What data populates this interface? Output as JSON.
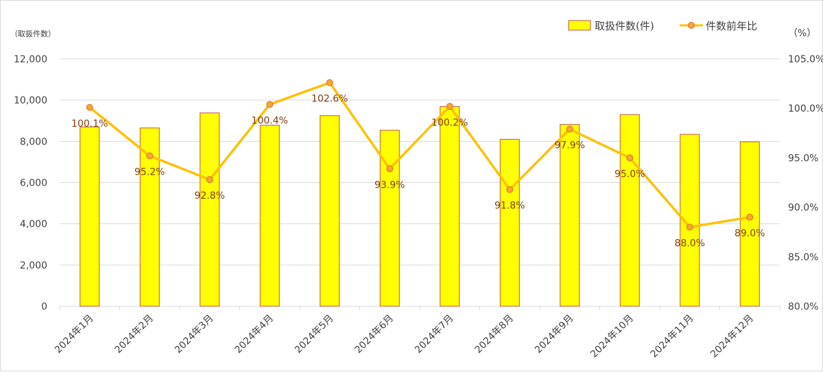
{
  "chart_data": {
    "type": "bar+line",
    "categories": [
      "2024年1月",
      "2024年2月",
      "2024年3月",
      "2024年4月",
      "2024年5月",
      "2024年6月",
      "2024年7月",
      "2024年8月",
      "2024年9月",
      "2024年10月",
      "2024年11月",
      "2024年12月"
    ],
    "series": [
      {
        "name": "取扱件数(件)",
        "type": "bar",
        "axis": "left",
        "values": [
          8700,
          8650,
          9380,
          8780,
          9250,
          8540,
          9690,
          8100,
          8820,
          9300,
          8340,
          7980
        ]
      },
      {
        "name": "件数前年比",
        "type": "line",
        "axis": "right",
        "values": [
          100.1,
          95.2,
          92.8,
          100.4,
          102.6,
          93.9,
          100.2,
          91.8,
          97.9,
          95.0,
          88.0,
          89.0
        ],
        "labels": [
          "100.1%",
          "95.2%",
          "92.8%",
          "100.4%",
          "102.6%",
          "93.9%",
          "100.2%",
          "91.8%",
          "97.9%",
          "95.0%",
          "88.0%",
          "89.0%"
        ]
      }
    ],
    "y_left": {
      "unit_label": "（取扱件数）",
      "ylim": [
        0,
        12000
      ],
      "ticks": [
        0,
        2000,
        4000,
        6000,
        8000,
        10000,
        12000
      ],
      "tick_labels": [
        "0",
        "2,000",
        "4,000",
        "6,000",
        "8,000",
        "10,000",
        "12,000"
      ]
    },
    "y_right": {
      "unit_label": "（%）",
      "ylim": [
        80,
        105
      ],
      "ticks": [
        80,
        85,
        90,
        95,
        100,
        105
      ],
      "tick_labels": [
        "80.0%",
        "85.0%",
        "90.0%",
        "95.0%",
        "100.0%",
        "105.0%"
      ]
    },
    "grid": true,
    "legend_position": "top-right",
    "colors": {
      "bar_fill": "#ffff00",
      "bar_stroke": "#c0504d",
      "line": "#ffc000",
      "marker_fill": "#f4a732",
      "marker_stroke": "#e07020",
      "grid": "#d9d9d9",
      "label": "#833c0b"
    }
  }
}
